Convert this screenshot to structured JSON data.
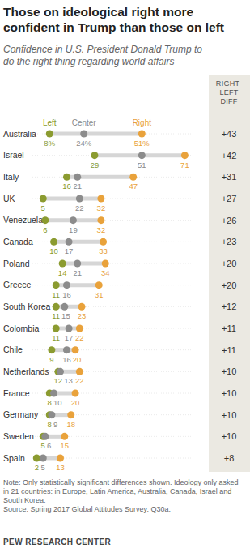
{
  "chart_data": {
    "type": "dot",
    "title": "Those on ideological right more confident in Trump than those on left",
    "subtitle": "Confidence in U.S. President Donald Trump to do the right thing regarding world affairs",
    "categories": [
      "Australia",
      "Israel",
      "Italy",
      "UK",
      "Venezuela",
      "Canada",
      "Poland",
      "Greece",
      "South Korea",
      "Colombia",
      "Chile",
      "Netherlands",
      "France",
      "Germany",
      "Sweden",
      "Spain"
    ],
    "series": [
      {
        "name": "Left",
        "color": "#8b9b30",
        "values": [
          8,
          29,
          16,
          5,
          6,
          10,
          14,
          11,
          11,
          11,
          9,
          12,
          8,
          8,
          5,
          2
        ],
        "value_labels": [
          "8%",
          "29",
          "16",
          "5",
          "6",
          "10",
          "14",
          "11",
          "11",
          "11",
          "9",
          "12",
          "8",
          "8",
          "5",
          "2"
        ]
      },
      {
        "name": "Center",
        "color": "#8c8c8c",
        "values": [
          24,
          51,
          21,
          22,
          19,
          17,
          21,
          16,
          15,
          17,
          16,
          13,
          10,
          9,
          6,
          5
        ],
        "value_labels": [
          "24%",
          "51",
          "21",
          "22",
          "19",
          "17",
          "21",
          "16",
          "15",
          "17",
          "16",
          "13",
          "10",
          "9",
          "6",
          "5"
        ]
      },
      {
        "name": "Right",
        "color": "#e9a23b",
        "values": [
          51,
          71,
          47,
          32,
          32,
          33,
          34,
          31,
          23,
          22,
          20,
          22,
          20,
          18,
          15,
          13
        ],
        "value_labels": [
          "51%",
          "71",
          "47",
          "32",
          "32",
          "33",
          "34",
          "31",
          "23",
          "22",
          "20",
          "22",
          "20",
          "18",
          "15",
          "13"
        ]
      }
    ],
    "xlim": [
      0,
      75
    ],
    "tick_labels": false,
    "data_labels": true,
    "differences": {
      "title": "RIGHT-LEFT DIFF",
      "values": [
        43,
        42,
        31,
        27,
        26,
        23,
        20,
        20,
        12,
        11,
        11,
        10,
        10,
        10,
        10,
        8
      ],
      "value_labels": [
        "+43",
        "+42",
        "+31",
        "+27",
        "+26",
        "+23",
        "+20",
        "+20",
        "+12",
        "+11",
        "+11",
        "+10",
        "+10",
        "+10",
        "+10",
        "+8"
      ]
    },
    "notes": [
      "Note: Only statistically significant differences shown. Ideology only asked in 21 countries: in Europe, Latin America, Australia, Canada, Israel and South Korea.",
      "Source: Spring 2017 Global Attitudes Survey. Q30a."
    ],
    "credit": "PEW RESEARCH CENTER"
  }
}
